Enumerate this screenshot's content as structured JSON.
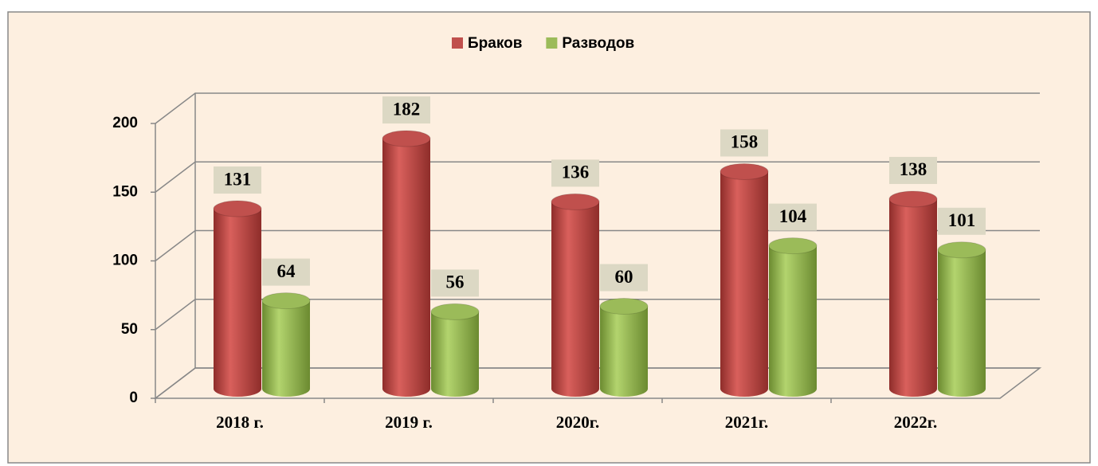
{
  "chart_data": {
    "type": "bar3d",
    "categories": [
      "2018 г.",
      "2019 г.",
      "2020г.",
      "2021г.",
      "2022г."
    ],
    "series": [
      {
        "name": "Браков",
        "color": "#c0504d",
        "values": [
          131,
          182,
          136,
          158,
          138
        ]
      },
      {
        "name": "Разводов",
        "color": "#9bbb59",
        "values": [
          64,
          56,
          60,
          104,
          101
        ]
      }
    ],
    "ylim": [
      0,
      200
    ],
    "yticks": [
      0,
      50,
      100,
      150,
      200
    ],
    "grid": true,
    "legend": "top"
  }
}
